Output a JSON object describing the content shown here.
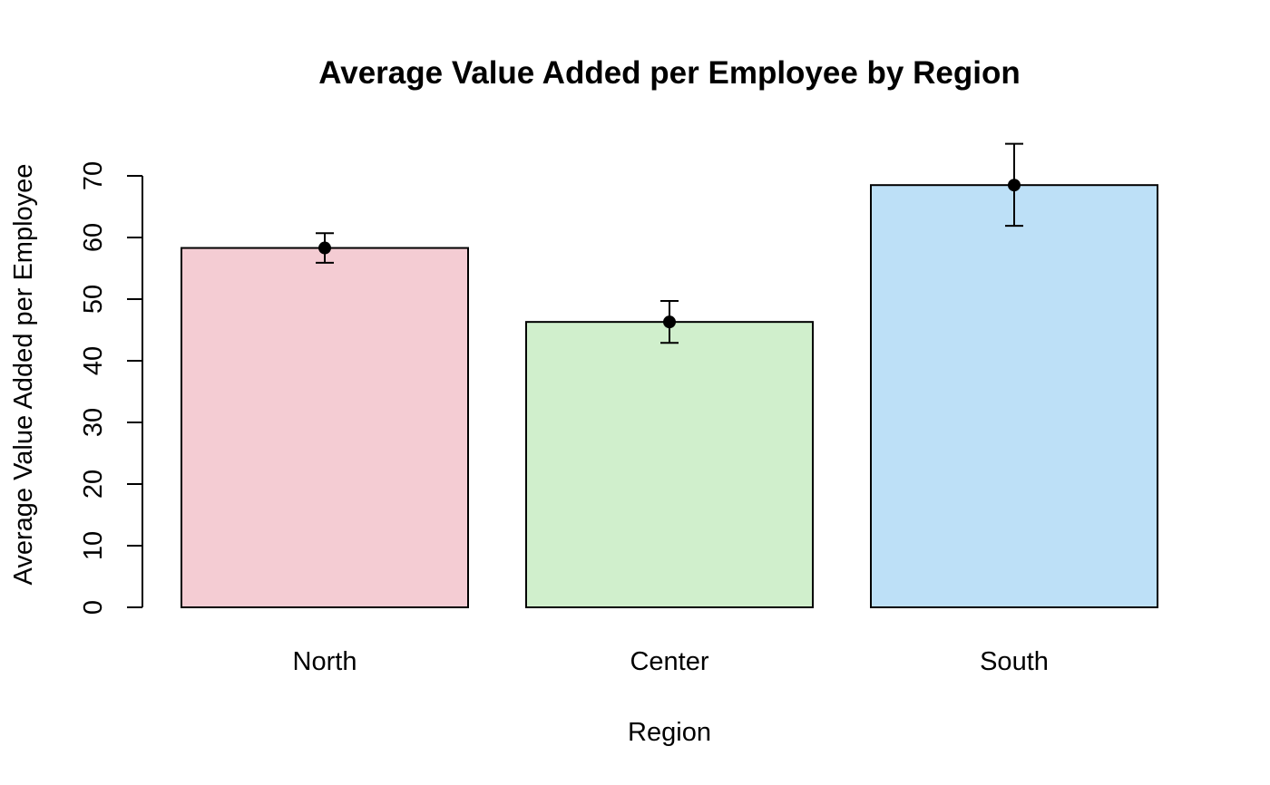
{
  "chart_data": {
    "type": "bar",
    "title": "Average Value Added per Employee by Region",
    "xlabel": "Region",
    "ylabel": "Average Value Added per Employee",
    "categories": [
      "North",
      "Center",
      "South"
    ],
    "values": [
      58.3,
      46.3,
      68.5
    ],
    "error_lower": [
      55.9,
      42.9,
      61.9
    ],
    "error_upper": [
      60.7,
      49.7,
      75.2
    ],
    "colors": [
      "#F4CCD3",
      "#D0EFCC",
      "#BDE0F7"
    ],
    "ylim": [
      0,
      70
    ],
    "yticks": [
      "0",
      "10",
      "20",
      "30",
      "40",
      "50",
      "60",
      "70"
    ],
    "grid": false,
    "legend": "none"
  }
}
